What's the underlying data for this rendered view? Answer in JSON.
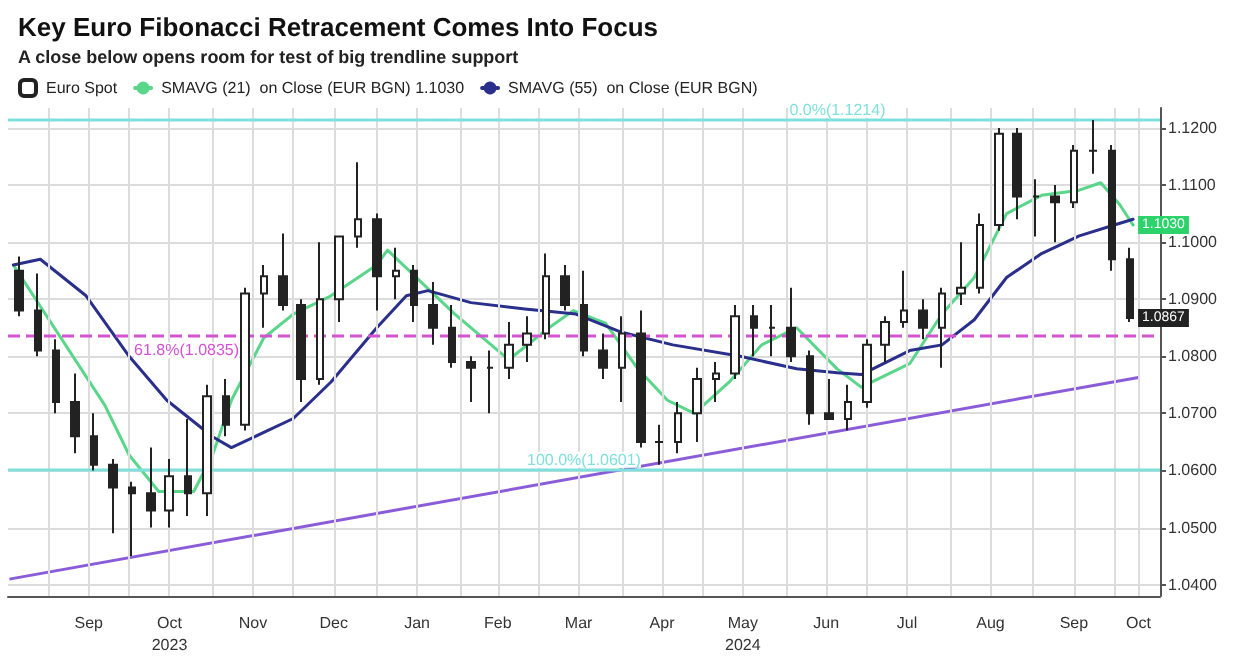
{
  "chart_data": {
    "type": "candlestick",
    "title": "Key Euro Fibonacci Retracement Comes Into Focus",
    "subtitle": "A close below opens room for test of big trendline support",
    "legend": "top left",
    "grid": true,
    "ylim": [
      1.038,
      1.1235
    ],
    "yticks": [
      {
        "value": 1.04,
        "label": "1.0400"
      },
      {
        "value": 1.05,
        "label": "1.0500"
      },
      {
        "value": 1.06,
        "label": "1.0600"
      },
      {
        "value": 1.07,
        "label": "1.0700"
      },
      {
        "value": 1.08,
        "label": "1.0800"
      },
      {
        "value": 1.09,
        "label": "1.0900"
      },
      {
        "value": 1.1,
        "label": "1.1000"
      },
      {
        "value": 1.11,
        "label": "1.1100"
      },
      {
        "value": 1.12,
        "label": "1.1200"
      }
    ],
    "xlim": [
      "2023-08-17",
      "2024-10-18"
    ],
    "xticks": [
      {
        "value": "2023-09-01",
        "label": null
      },
      {
        "value": "2023-09-16",
        "label": "Sep"
      },
      {
        "value": "2023-10-01",
        "label": null
      },
      {
        "value": "2023-10-16",
        "label": "Oct\n2023"
      },
      {
        "value": "2023-11-01",
        "label": null
      },
      {
        "value": "2023-11-16",
        "label": "Nov"
      },
      {
        "value": "2023-12-01",
        "label": null
      },
      {
        "value": "2023-12-16",
        "label": "Dec"
      },
      {
        "value": "2024-01-01",
        "label": null
      },
      {
        "value": "2024-01-16",
        "label": "Jan"
      },
      {
        "value": "2024-02-01",
        "label": null
      },
      {
        "value": "2024-02-15",
        "label": "Feb"
      },
      {
        "value": "2024-03-01",
        "label": null
      },
      {
        "value": "2024-03-16",
        "label": "Mar"
      },
      {
        "value": "2024-04-01",
        "label": null
      },
      {
        "value": "2024-04-16",
        "label": "Apr"
      },
      {
        "value": "2024-05-01",
        "label": null
      },
      {
        "value": "2024-05-16",
        "label": "May\n2024"
      },
      {
        "value": "2024-06-01",
        "label": null
      },
      {
        "value": "2024-06-16",
        "label": "Jun"
      },
      {
        "value": "2024-07-01",
        "label": null
      },
      {
        "value": "2024-07-16",
        "label": "Jul"
      },
      {
        "value": "2024-08-01",
        "label": null
      },
      {
        "value": "2024-08-16",
        "label": "Aug"
      },
      {
        "value": "2024-09-01",
        "label": null
      },
      {
        "value": "2024-09-16",
        "label": "Sep"
      },
      {
        "value": "2024-10-01",
        "label": null
      },
      {
        "value": "2024-10-10",
        "label": "Oct"
      }
    ],
    "ref_lines": [
      {
        "axis": "y",
        "value": 1.1214,
        "label": "0.0%(1.1214)",
        "color": "#7ee0dc",
        "line_style": "solid"
      },
      {
        "axis": "y",
        "value": 1.0835,
        "label": "61.8%(1.0835)",
        "color": "#d452d0",
        "line_style": "dashed"
      },
      {
        "axis": "y",
        "value": 1.0601,
        "label": "100.0%(1.0601)",
        "color": "#7ee0dc",
        "line_style": "solid"
      }
    ],
    "annotations": [
      {
        "text": "1.1030",
        "x": "2024-10-08",
        "y": 1.103
      },
      {
        "text": "1.0867",
        "x": "2024-10-08",
        "y": 1.0867
      }
    ],
    "series": [
      {
        "name": "Euro Spot",
        "color": "#222222",
        "x": [
          "2023-08-21",
          "2023-08-28",
          "2023-09-04",
          "2023-09-11",
          "2023-09-18",
          "2023-09-25",
          "2023-10-02",
          "2023-10-09",
          "2023-10-16",
          "2023-10-23",
          "2023-10-30",
          "2023-11-06",
          "2023-11-13",
          "2023-11-20",
          "2023-11-27",
          "2023-12-04",
          "2023-12-11",
          "2023-12-18",
          "2023-12-25",
          "2024-01-01",
          "2024-01-08",
          "2024-01-15",
          "2024-01-22",
          "2024-01-29",
          "2024-02-05",
          "2024-02-12",
          "2024-02-19",
          "2024-02-26",
          "2024-03-04",
          "2024-03-11",
          "2024-03-18",
          "2024-03-25",
          "2024-04-01",
          "2024-04-08",
          "2024-04-15",
          "2024-04-22",
          "2024-04-29",
          "2024-05-06",
          "2024-05-13",
          "2024-05-20",
          "2024-05-27",
          "2024-06-03",
          "2024-06-10",
          "2024-06-17",
          "2024-06-24",
          "2024-07-01",
          "2024-07-08",
          "2024-07-15",
          "2024-07-22",
          "2024-07-29",
          "2024-08-05",
          "2024-08-12",
          "2024-08-19",
          "2024-08-26",
          "2024-09-02",
          "2024-09-09",
          "2024-09-16",
          "2024-09-23",
          "2024-09-30",
          "2024-10-07"
        ],
        "ohlc": [
          [
            1.095,
            1.0975,
            1.087,
            1.088
          ],
          [
            1.088,
            1.0945,
            1.08,
            1.081
          ],
          [
            1.081,
            1.083,
            1.07,
            1.072
          ],
          [
            1.072,
            1.077,
            1.063,
            1.066
          ],
          [
            1.066,
            1.07,
            1.06,
            1.061
          ],
          [
            1.061,
            1.062,
            1.049,
            1.057
          ],
          [
            1.057,
            1.058,
            1.045,
            1.056
          ],
          [
            1.056,
            1.064,
            1.05,
            1.053
          ],
          [
            1.053,
            1.062,
            1.05,
            1.059
          ],
          [
            1.059,
            1.069,
            1.052,
            1.056
          ],
          [
            1.056,
            1.075,
            1.052,
            1.073
          ],
          [
            1.073,
            1.076,
            1.066,
            1.068
          ],
          [
            1.068,
            1.092,
            1.067,
            1.091
          ],
          [
            1.091,
            1.096,
            1.085,
            1.094
          ],
          [
            1.094,
            1.1015,
            1.088,
            1.089
          ],
          [
            1.089,
            1.09,
            1.072,
            1.076
          ],
          [
            1.076,
            1.1,
            1.075,
            1.09
          ],
          [
            1.09,
            1.101,
            1.086,
            1.101
          ],
          [
            1.101,
            1.114,
            1.099,
            1.104
          ],
          [
            1.104,
            1.105,
            1.088,
            1.094
          ],
          [
            1.094,
            1.099,
            1.09,
            1.095
          ],
          [
            1.095,
            1.096,
            1.086,
            1.089
          ],
          [
            1.089,
            1.093,
            1.082,
            1.085
          ],
          [
            1.085,
            1.089,
            1.078,
            1.079
          ],
          [
            1.079,
            1.08,
            1.072,
            1.078
          ],
          [
            1.078,
            1.081,
            1.07,
            1.078
          ],
          [
            1.078,
            1.086,
            1.076,
            1.082
          ],
          [
            1.082,
            1.087,
            1.079,
            1.084
          ],
          [
            1.084,
            1.098,
            1.083,
            1.094
          ],
          [
            1.094,
            1.096,
            1.088,
            1.089
          ],
          [
            1.089,
            1.095,
            1.08,
            1.081
          ],
          [
            1.081,
            1.084,
            1.076,
            1.078
          ],
          [
            1.078,
            1.087,
            1.072,
            1.084
          ],
          [
            1.084,
            1.088,
            1.064,
            1.065
          ],
          [
            1.065,
            1.068,
            1.061,
            1.065
          ],
          [
            1.065,
            1.072,
            1.063,
            1.07
          ],
          [
            1.07,
            1.078,
            1.065,
            1.076
          ],
          [
            1.076,
            1.079,
            1.072,
            1.077
          ],
          [
            1.077,
            1.089,
            1.076,
            1.087
          ],
          [
            1.087,
            1.089,
            1.08,
            1.085
          ],
          [
            1.085,
            1.089,
            1.08,
            1.085
          ],
          [
            1.085,
            1.092,
            1.079,
            1.08
          ],
          [
            1.08,
            1.081,
            1.068,
            1.07
          ],
          [
            1.07,
            1.076,
            1.069,
            1.069
          ],
          [
            1.069,
            1.075,
            1.067,
            1.072
          ],
          [
            1.072,
            1.083,
            1.071,
            1.082
          ],
          [
            1.082,
            1.087,
            1.079,
            1.086
          ],
          [
            1.086,
            1.095,
            1.085,
            1.088
          ],
          [
            1.088,
            1.09,
            1.083,
            1.085
          ],
          [
            1.085,
            1.092,
            1.078,
            1.091
          ],
          [
            1.091,
            1.1,
            1.089,
            1.092
          ],
          [
            1.092,
            1.105,
            1.091,
            1.103
          ],
          [
            1.103,
            1.12,
            1.102,
            1.119
          ],
          [
            1.119,
            1.12,
            1.104,
            1.108
          ],
          [
            1.108,
            1.111,
            1.101,
            1.108
          ],
          [
            1.108,
            1.11,
            1.1,
            1.107
          ],
          [
            1.107,
            1.117,
            1.106,
            1.116
          ],
          [
            1.116,
            1.1214,
            1.112,
            1.116
          ],
          [
            1.116,
            1.117,
            1.095,
            1.097
          ],
          [
            1.097,
            1.099,
            1.086,
            1.0867
          ]
        ]
      },
      {
        "name": "SMAVG (21)  on Close (EUR BGN) 1.1030",
        "type": "line",
        "color": "#5ad68a",
        "x": [
          "2023-08-19",
          "2023-09-22",
          "2023-10-01",
          "2023-10-12",
          "2023-10-25",
          "2023-11-01",
          "2023-11-08",
          "2023-11-20",
          "2023-12-01",
          "2023-12-15",
          "2024-01-01",
          "2024-01-05",
          "2024-01-30",
          "2024-02-19",
          "2024-03-05",
          "2024-03-14",
          "2024-03-26",
          "2024-04-07",
          "2024-04-18",
          "2024-04-28",
          "2024-05-11",
          "2024-05-23",
          "2024-06-05",
          "2024-06-20",
          "2024-06-29",
          "2024-07-17",
          "2024-07-29",
          "2024-08-10",
          "2024-08-22",
          "2024-09-04",
          "2024-09-18",
          "2024-09-26",
          "2024-10-03",
          "2024-10-08"
        ],
        "values": [
          1.096,
          1.0714,
          1.0627,
          1.0563,
          1.0563,
          1.0627,
          1.0723,
          1.0832,
          1.0874,
          1.0906,
          1.096,
          1.0986,
          1.0874,
          1.0794,
          1.085,
          1.088,
          1.0858,
          1.0778,
          1.0723,
          1.07,
          1.0755,
          1.082,
          1.085,
          1.0778,
          1.0746,
          1.0787,
          1.0874,
          1.0938,
          1.105,
          1.1082,
          1.1091,
          1.1104,
          1.1066,
          1.103
        ]
      },
      {
        "name": "SMAVG (55)  on Close (EUR BGN)",
        "type": "line",
        "color": "#2a2f8c",
        "x": [
          "2023-08-19",
          "2023-08-29",
          "2023-09-15",
          "2023-10-01",
          "2023-10-15",
          "2023-11-01",
          "2023-11-08",
          "2023-12-01",
          "2023-12-15",
          "2024-01-01",
          "2024-01-12",
          "2024-01-20",
          "2024-02-05",
          "2024-02-25",
          "2024-03-15",
          "2024-04-01",
          "2024-04-20",
          "2024-05-15",
          "2024-06-05",
          "2024-06-20",
          "2024-06-29",
          "2024-07-17",
          "2024-07-29",
          "2024-08-10",
          "2024-08-22",
          "2024-09-04",
          "2024-09-18",
          "2024-10-01",
          "2024-10-08"
        ],
        "values": [
          1.096,
          1.097,
          1.0906,
          1.08,
          1.0723,
          1.0659,
          1.064,
          1.0691,
          1.0755,
          1.085,
          1.0906,
          1.0915,
          1.0894,
          1.0883,
          1.0874,
          1.0842,
          1.082,
          1.08,
          1.0778,
          1.0771,
          1.0768,
          1.081,
          1.082,
          1.0864,
          1.0938,
          1.098,
          1.1011,
          1.103,
          1.104
        ]
      },
      {
        "type": "line",
        "color": "#8b5cd8",
        "x": [
          "2023-08-18",
          "2024-10-10"
        ],
        "values": [
          1.041,
          1.0763
        ]
      }
    ]
  }
}
